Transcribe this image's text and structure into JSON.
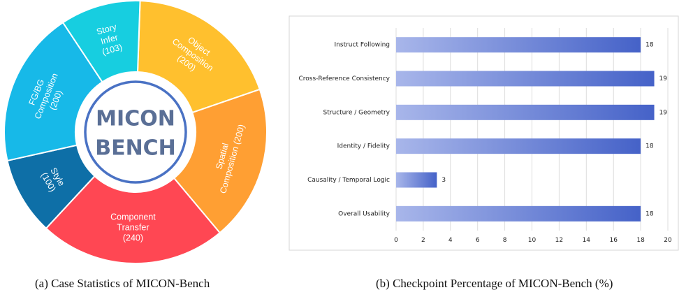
{
  "chart_data": [
    {
      "type": "pie",
      "title": "MICON BENCH",
      "center_lines": [
        "MICON",
        "BENCH"
      ],
      "caption": "(a) Case Statistics of MICON-Bench",
      "slices": [
        {
          "lines": [
            "Object",
            "Composition",
            "(200)"
          ],
          "name": "Object Composition",
          "value": 200,
          "color": "#FFC02E"
        },
        {
          "lines": [
            "Spatial",
            "Composition (200)"
          ],
          "name": "Spatial Composition",
          "value": 200,
          "color": "#FF9F33"
        },
        {
          "lines": [
            "Component",
            "Transfer",
            "(240)"
          ],
          "name": "Component Transfer",
          "value": 240,
          "color": "#FF4753"
        },
        {
          "lines": [
            "Style",
            "(100)"
          ],
          "name": "Style",
          "value": 100,
          "color": "#0E6FA7"
        },
        {
          "lines": [
            "FG/BG",
            "Composition",
            "(200)"
          ],
          "name": "FG/BG Composition",
          "value": 200,
          "color": "#17B9E8"
        },
        {
          "lines": [
            "Story",
            "Infer",
            "(103)"
          ],
          "name": "Story Infer",
          "value": 103,
          "color": "#17CEE0"
        }
      ]
    },
    {
      "type": "bar",
      "orientation": "horizontal",
      "caption": "(b) Checkpoint Percentage of MICON-Bench (%)",
      "categories": [
        "Instruct Following",
        "Cross-Reference Consistency",
        "Structure / Geometry",
        "Identity / Fidelity",
        "Causality / Temporal Logic",
        "Overall Usability"
      ],
      "values": [
        18,
        19,
        19,
        18,
        3,
        18
      ],
      "xlim": [
        0,
        20
      ],
      "xticks": [
        0,
        2,
        4,
        6,
        8,
        10,
        12,
        14,
        16,
        18,
        20
      ],
      "grid": true,
      "bar_color_start": "#A8B6EA",
      "bar_color_end": "#4562C8"
    }
  ]
}
